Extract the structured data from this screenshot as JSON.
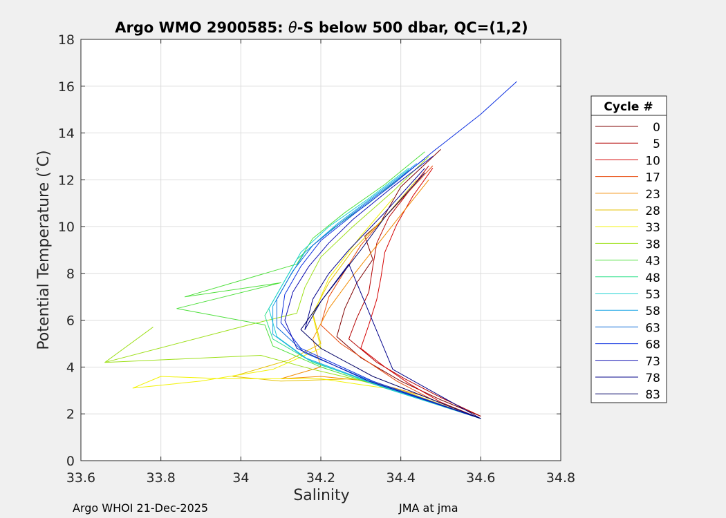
{
  "chart_data": {
    "type": "line",
    "title_prefix": "Argo WMO 2900585: ",
    "title_theta": "θ",
    "title_suffix": "-S below 500 dbar,  QC=(1,2)",
    "xlabel": "Salinity",
    "ylabel_prefix": "Potential Temperature (",
    "ylabel_degree": "°",
    "ylabel_suffix": "C)",
    "xlim": [
      33.6,
      34.8
    ],
    "ylim": [
      0,
      18
    ],
    "xticks": [
      "33.6",
      "33.8",
      "34",
      "34.2",
      "34.4",
      "34.6",
      "34.8"
    ],
    "yticks": [
      "0",
      "2",
      "4",
      "6",
      "8",
      "10",
      "12",
      "14",
      "16",
      "18"
    ],
    "grid": true,
    "legend": {
      "title": "Cycle #",
      "placement": "outside-right",
      "entries": [
        {
          "name": "0",
          "color": "#7f0000"
        },
        {
          "name": "5",
          "color": "#b30000"
        },
        {
          "name": "10",
          "color": "#d40000"
        },
        {
          "name": "17",
          "color": "#e84a0c"
        },
        {
          "name": "23",
          "color": "#f28a00"
        },
        {
          "name": "28",
          "color": "#e6c200"
        },
        {
          "name": "33",
          "color": "#f2f200"
        },
        {
          "name": "38",
          "color": "#9ee01a"
        },
        {
          "name": "43",
          "color": "#4ee03c"
        },
        {
          "name": "48",
          "color": "#2ee08a"
        },
        {
          "name": "53",
          "color": "#1ad0d0"
        },
        {
          "name": "58",
          "color": "#1aa6e6"
        },
        {
          "name": "63",
          "color": "#0a6ad8"
        },
        {
          "name": "68",
          "color": "#0a2ee0"
        },
        {
          "name": "73",
          "color": "#0a0ab0"
        },
        {
          "name": "78",
          "color": "#00008a"
        },
        {
          "name": "83",
          "color": "#000066"
        }
      ]
    },
    "series": [
      {
        "color": "#7f0000",
        "x": [
          34.6,
          34.5,
          34.4,
          34.3,
          34.24,
          34.26,
          34.29,
          34.33,
          34.31,
          34.35,
          34.38,
          34.4,
          34.45,
          34.5
        ],
        "y": [
          1.9,
          2.6,
          3.4,
          4.4,
          5.3,
          6.5,
          7.6,
          8.6,
          9.6,
          10.2,
          11.1,
          11.7,
          12.5,
          13.3
        ]
      },
      {
        "color": "#b30000",
        "x": [
          34.6,
          34.5,
          34.41,
          34.34,
          34.27,
          34.29,
          34.32,
          34.33,
          34.34,
          34.37,
          34.42,
          34.47
        ],
        "y": [
          1.9,
          2.7,
          3.5,
          4.2,
          5.2,
          6.1,
          7.2,
          8.3,
          9.3,
          10.4,
          11.5,
          12.6
        ]
      },
      {
        "color": "#d40000",
        "x": [
          34.6,
          34.5,
          34.42,
          34.36,
          34.3,
          34.32,
          34.34,
          34.35,
          34.36,
          34.39,
          34.43,
          34.48
        ],
        "y": [
          1.8,
          2.5,
          3.3,
          4.0,
          4.8,
          5.8,
          6.9,
          7.8,
          8.9,
          10.1,
          11.3,
          12.5
        ]
      },
      {
        "color": "#e84a0c",
        "x": [
          34.6,
          34.48,
          34.39,
          34.32,
          34.25,
          34.2,
          34.22,
          34.26,
          34.3,
          34.36,
          34.42,
          34.48
        ],
        "y": [
          1.8,
          2.6,
          3.4,
          4.2,
          5.0,
          5.8,
          7.0,
          8.1,
          9.2,
          10.4,
          11.5,
          12.6
        ]
      },
      {
        "color": "#f28a00",
        "x": [
          34.6,
          34.45,
          34.32,
          34.2,
          34.1,
          34.2,
          34.18,
          34.22,
          34.28,
          34.34,
          34.4,
          34.47
        ],
        "y": [
          1.8,
          2.8,
          3.4,
          3.6,
          3.5,
          4.0,
          5.2,
          6.5,
          7.9,
          9.2,
          10.5,
          12.0
        ]
      },
      {
        "color": "#e6c200",
        "x": [
          34.6,
          34.42,
          34.28,
          34.1,
          33.98,
          34.12,
          34.2,
          34.18,
          34.22,
          34.28,
          34.36,
          34.44
        ],
        "y": [
          1.8,
          2.9,
          3.5,
          3.4,
          3.6,
          4.3,
          5.0,
          6.3,
          7.6,
          9.0,
          10.4,
          12.0
        ]
      },
      {
        "color": "#f2f200",
        "x": [
          34.6,
          34.4,
          34.2,
          33.96,
          33.8,
          33.73,
          33.9,
          34.08,
          34.2,
          34.18,
          34.22,
          34.3,
          34.38
        ],
        "y": [
          1.8,
          3.0,
          3.5,
          3.5,
          3.6,
          3.1,
          3.4,
          3.9,
          4.8,
          6.2,
          7.8,
          9.6,
          11.2
        ]
      },
      {
        "color": "#9ee01a",
        "x": [
          34.6,
          34.38,
          34.18,
          34.05,
          33.66,
          33.78,
          33.66,
          34.02,
          34.14,
          34.16,
          34.2,
          34.28,
          34.38,
          34.47
        ],
        "y": [
          1.8,
          3.1,
          3.9,
          4.5,
          4.2,
          5.7,
          4.2,
          5.8,
          6.3,
          7.4,
          8.7,
          10.0,
          11.5,
          13.0
        ]
      },
      {
        "color": "#4ee03c",
        "x": [
          34.6,
          34.38,
          34.2,
          34.08,
          34.06,
          33.84,
          34.1,
          33.86,
          34.14,
          34.18,
          34.26,
          34.36,
          34.46
        ],
        "y": [
          1.8,
          3.0,
          4.0,
          4.9,
          5.8,
          6.5,
          7.6,
          7.0,
          8.4,
          9.5,
          10.6,
          11.8,
          13.2
        ]
      },
      {
        "color": "#2ee08a",
        "x": [
          34.6,
          34.37,
          34.18,
          34.08,
          34.06,
          34.1,
          34.14,
          34.22,
          34.32,
          34.42
        ],
        "y": [
          1.8,
          3.1,
          4.2,
          5.2,
          6.2,
          7.4,
          8.6,
          9.8,
          11.0,
          12.4
        ]
      },
      {
        "color": "#1ad0d0",
        "x": [
          34.6,
          34.36,
          34.17,
          34.09,
          34.07,
          34.11,
          34.15,
          34.22,
          34.32,
          34.42
        ],
        "y": [
          1.8,
          3.1,
          4.3,
          5.3,
          6.5,
          7.7,
          8.9,
          10.0,
          11.2,
          12.5
        ]
      },
      {
        "color": "#1aa6e6",
        "x": [
          34.6,
          34.35,
          34.16,
          34.08,
          34.08,
          34.12,
          34.16,
          34.24,
          34.34,
          34.44
        ],
        "y": [
          1.8,
          3.2,
          4.4,
          5.4,
          6.6,
          7.8,
          8.9,
          10.1,
          11.4,
          12.7
        ]
      },
      {
        "color": "#0a6ad8",
        "x": [
          34.6,
          34.34,
          34.16,
          34.09,
          34.09,
          34.13,
          34.18,
          34.26,
          34.36,
          34.46
        ],
        "y": [
          1.8,
          3.3,
          4.6,
          5.7,
          6.9,
          8.1,
          9.2,
          10.3,
          11.6,
          12.9
        ]
      },
      {
        "color": "#0a2ee0",
        "x": [
          34.6,
          34.33,
          34.15,
          34.1,
          34.11,
          34.15,
          34.2,
          34.28,
          34.38,
          34.48,
          34.6,
          34.69
        ],
        "y": [
          1.8,
          3.4,
          4.8,
          5.9,
          7.1,
          8.3,
          9.4,
          10.5,
          11.8,
          13.2,
          14.8,
          16.2
        ]
      },
      {
        "color": "#0a0ab0",
        "x": [
          34.6,
          34.32,
          34.14,
          34.11,
          34.13,
          34.17,
          34.22,
          34.28,
          34.38,
          34.48
        ],
        "y": [
          1.8,
          3.4,
          4.8,
          6.0,
          7.2,
          8.3,
          9.3,
          10.3,
          11.7,
          13.0
        ]
      },
      {
        "color": "#00008a",
        "x": [
          34.6,
          34.38,
          34.27,
          34.2,
          34.16,
          34.18,
          34.22,
          34.27,
          34.36,
          34.46
        ],
        "y": [
          1.8,
          3.9,
          8.4,
          6.8,
          5.6,
          6.9,
          8.0,
          9.0,
          10.6,
          12.5
        ]
      },
      {
        "color": "#000066",
        "x": [
          34.6,
          34.33,
          34.2,
          34.15,
          34.2,
          34.25,
          34.3,
          34.36,
          34.46
        ],
        "y": [
          1.8,
          3.6,
          4.8,
          5.6,
          6.8,
          7.9,
          9.0,
          10.4,
          12.3
        ]
      }
    ]
  },
  "footer": {
    "left": "Argo WHOI 21-Dec-2025",
    "right": "JMA at jma"
  }
}
